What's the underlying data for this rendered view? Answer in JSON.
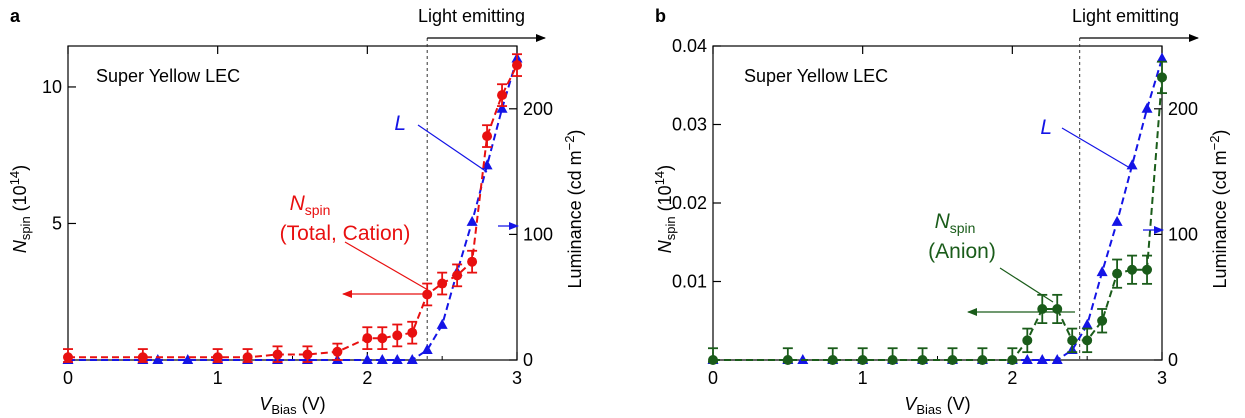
{
  "colors": {
    "axis": "#000000",
    "nspin_a": "#e81010",
    "nspin_b": "#1a5c1a",
    "luminance": "#1414e6",
    "emit_line": "#555555"
  },
  "chart_data": [
    {
      "type": "scatter",
      "panel_label": "a",
      "inset_text": "Super Yellow LEC",
      "xlabel_main": "V",
      "xlabel_sub": "Bias",
      "xlabel_unit": " (V)",
      "ylabel_main": "N",
      "ylabel_sub": "spin",
      "ylabel_unit_pre": " (10",
      "ylabel_exp": "14",
      "ylabel_unit_post": ")",
      "y2label_pre": "Luminance (cd m",
      "y2label_exp": "−2",
      "y2label_post": ")",
      "xlim": [
        0,
        3
      ],
      "ylim": [
        0,
        11.5
      ],
      "y2lim": [
        0,
        250
      ],
      "xticks": [
        "0",
        "1",
        "2",
        "3"
      ],
      "xtick_values": [
        0,
        1,
        2,
        3
      ],
      "yticks": [
        "5",
        "10"
      ],
      "ytick_values": [
        5,
        10
      ],
      "y2ticks": [
        "0",
        "100",
        "200"
      ],
      "y2tick_values": [
        0,
        100,
        200
      ],
      "emission_threshold_v": 2.4,
      "emission_label": "Light emitting",
      "nspin_label_main": "N",
      "nspin_label_sub": "spin",
      "nspin_label_line2": "(Total, Cation)",
      "lum_label": "L",
      "series": [
        {
          "role": "nspin",
          "color": "#e81010",
          "x": [
            0.0,
            0.5,
            1.0,
            1.2,
            1.4,
            1.6,
            1.8,
            2.0,
            2.1,
            2.2,
            2.3,
            2.4,
            2.5,
            2.6,
            2.7,
            2.8,
            2.9,
            3.0
          ],
          "y": [
            0.1,
            0.1,
            0.1,
            0.1,
            0.2,
            0.2,
            0.3,
            0.8,
            0.8,
            0.9,
            1.0,
            2.4,
            2.8,
            3.1,
            3.6,
            8.2,
            9.7,
            10.8
          ],
          "err": [
            0.3,
            0.3,
            0.3,
            0.3,
            0.3,
            0.3,
            0.3,
            0.4,
            0.4,
            0.4,
            0.4,
            0.4,
            0.4,
            0.4,
            0.4,
            0.4,
            0.4,
            0.4
          ]
        },
        {
          "role": "luminance",
          "color": "#1414e6",
          "x": [
            0.0,
            0.5,
            0.6,
            0.8,
            1.0,
            1.2,
            1.4,
            1.6,
            1.8,
            2.0,
            2.1,
            2.2,
            2.3,
            2.4,
            2.5,
            2.6,
            2.7,
            2.8,
            2.9,
            3.0
          ],
          "y": [
            0,
            0,
            0,
            0,
            0,
            0,
            0,
            0,
            0,
            0,
            0,
            0,
            0,
            8,
            28,
            70,
            110,
            155,
            200,
            240
          ]
        }
      ]
    },
    {
      "type": "scatter",
      "panel_label": "b",
      "inset_text": "Super Yellow LEC",
      "xlabel_main": "V",
      "xlabel_sub": "Bias",
      "xlabel_unit": " (V)",
      "ylabel_main": "N",
      "ylabel_sub": "spin",
      "ylabel_unit_pre": " (10",
      "ylabel_exp": "14",
      "ylabel_unit_post": ")",
      "y2label_pre": "Luminance (cd m",
      "y2label_exp": "−2",
      "y2label_post": ")",
      "xlim": [
        0,
        3
      ],
      "ylim": [
        0,
        0.04
      ],
      "y2lim": [
        0,
        250
      ],
      "xticks": [
        "0",
        "1",
        "2",
        "3"
      ],
      "xtick_values": [
        0,
        1,
        2,
        3
      ],
      "yticks": [
        "0.01",
        "0.02",
        "0.03",
        "0.04"
      ],
      "ytick_values": [
        0.01,
        0.02,
        0.03,
        0.04
      ],
      "y2ticks": [
        "0",
        "100",
        "200"
      ],
      "y2tick_values": [
        0,
        100,
        200
      ],
      "emission_threshold_v": 2.45,
      "emission_label": "Light emitting",
      "nspin_label_main": "N",
      "nspin_label_sub": "spin",
      "nspin_label_line2": "(Anion)",
      "lum_label": "L",
      "series": [
        {
          "role": "nspin",
          "color": "#1a5c1a",
          "x": [
            0.0,
            0.5,
            0.8,
            1.0,
            1.2,
            1.4,
            1.6,
            1.8,
            2.0,
            2.1,
            2.2,
            2.3,
            2.4,
            2.5,
            2.6,
            2.7,
            2.8,
            2.9,
            3.0
          ],
          "y": [
            0.0,
            0.0,
            0.0,
            0.0,
            0.0,
            0.0,
            0.0,
            0.0,
            0.0,
            0.0025,
            0.0065,
            0.0065,
            0.0025,
            0.0025,
            0.005,
            0.011,
            0.0115,
            0.0115,
            0.036
          ],
          "err": [
            0.0015,
            0.0015,
            0.0015,
            0.0015,
            0.0015,
            0.0015,
            0.0015,
            0.0015,
            0.0015,
            0.0015,
            0.0018,
            0.0018,
            0.0015,
            0.0015,
            0.0015,
            0.0018,
            0.0018,
            0.0018,
            0.002
          ]
        },
        {
          "role": "luminance",
          "color": "#1414e6",
          "x": [
            0.0,
            0.5,
            0.6,
            0.8,
            1.0,
            1.2,
            1.4,
            1.6,
            1.8,
            2.0,
            2.1,
            2.2,
            2.3,
            2.4,
            2.5,
            2.6,
            2.7,
            2.8,
            2.9,
            3.0
          ],
          "y": [
            0,
            0,
            0,
            0,
            0,
            0,
            0,
            0,
            0,
            0,
            0,
            0,
            0,
            8,
            28,
            70,
            110,
            155,
            200,
            240
          ]
        }
      ]
    }
  ]
}
